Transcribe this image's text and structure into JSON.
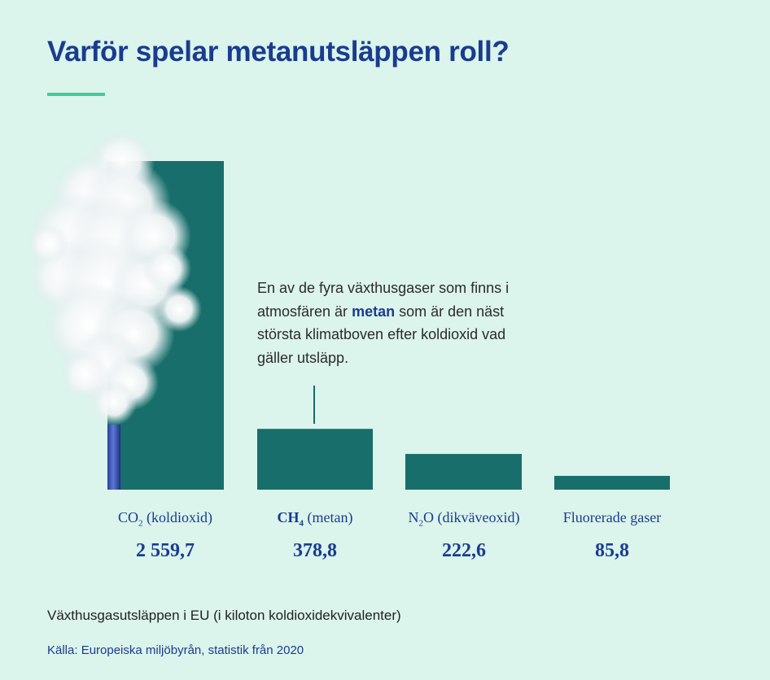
{
  "title": "Varför spelar metanutsläppen roll?",
  "annotation": {
    "part1": "En av de fyra växthusgaser som finns i atmosfären är ",
    "highlight": "metan",
    "part2": " som är den näst största klimatboven efter koldioxid vad gäller utsläpp."
  },
  "chart_data": {
    "type": "bar",
    "categories": [
      {
        "formula_main": "CO",
        "formula_sub": "2",
        "formula_bold": false,
        "name": " (koldioxid)"
      },
      {
        "formula_main": "CH",
        "formula_sub": "4",
        "formula_bold": true,
        "name": " (metan)"
      },
      {
        "formula_main": "N",
        "formula_sub": "2",
        "formula_rest": "O",
        "formula_bold": false,
        "name": " (dikväveoxid)"
      },
      {
        "formula_main": "Fluorerade gaser",
        "formula_sub": "",
        "formula_bold": false,
        "name": ""
      }
    ],
    "values": [
      2559.7,
      378.8,
      222.6,
      85.8
    ],
    "value_labels": [
      "2 559,7",
      "378,8",
      "222,6",
      "85,8"
    ],
    "bar_color": "#176e6b",
    "note": "CO2 bar depicted with smokestack and smoke"
  },
  "subtitle": "Växthusgasutsläppen i EU (i kiloton koldioxidekvivalenter)",
  "source": "Källa: Europeiska miljöbyrån, statistik från 2020",
  "colors": {
    "background": "#dbf4ec",
    "title": "#1a3c8f",
    "accent_rule": "#3fcc98",
    "bar": "#176e6b"
  }
}
